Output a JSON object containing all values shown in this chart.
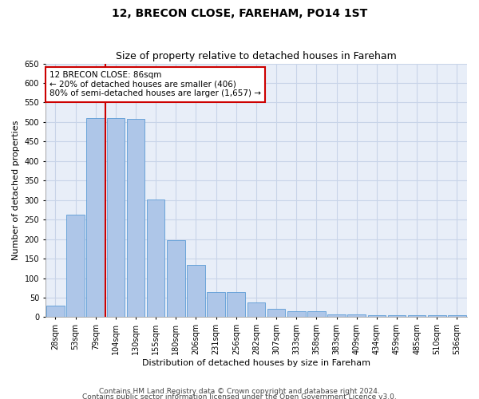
{
  "title": "12, BRECON CLOSE, FAREHAM, PO14 1ST",
  "subtitle": "Size of property relative to detached houses in Fareham",
  "xlabel": "Distribution of detached houses by size in Fareham",
  "ylabel": "Number of detached properties",
  "categories": [
    "28sqm",
    "53sqm",
    "79sqm",
    "104sqm",
    "130sqm",
    "155sqm",
    "180sqm",
    "206sqm",
    "231sqm",
    "256sqm",
    "282sqm",
    "307sqm",
    "333sqm",
    "358sqm",
    "383sqm",
    "409sqm",
    "434sqm",
    "459sqm",
    "485sqm",
    "510sqm",
    "536sqm"
  ],
  "values": [
    30,
    263,
    511,
    511,
    508,
    302,
    197,
    133,
    65,
    65,
    38,
    22,
    15,
    15,
    8,
    8,
    5,
    5,
    5,
    5,
    5
  ],
  "bar_color": "#aec6e8",
  "bar_edge_color": "#5b9bd5",
  "vline_x": 2.5,
  "vline_color": "#cc0000",
  "annotation_text": "12 BRECON CLOSE: 86sqm\n← 20% of detached houses are smaller (406)\n80% of semi-detached houses are larger (1,657) →",
  "annotation_box_color": "#ffffff",
  "annotation_box_edge": "#cc0000",
  "ylim": [
    0,
    650
  ],
  "yticks": [
    0,
    50,
    100,
    150,
    200,
    250,
    300,
    350,
    400,
    450,
    500,
    550,
    600,
    650
  ],
  "background_color": "#ffffff",
  "grid_color": "#c8d4e8",
  "footer1": "Contains HM Land Registry data © Crown copyright and database right 2024.",
  "footer2": "Contains public sector information licensed under the Open Government Licence v3.0.",
  "title_fontsize": 10,
  "subtitle_fontsize": 9,
  "axis_label_fontsize": 8,
  "tick_fontsize": 7,
  "annotation_fontsize": 7.5,
  "footer_fontsize": 6.5
}
